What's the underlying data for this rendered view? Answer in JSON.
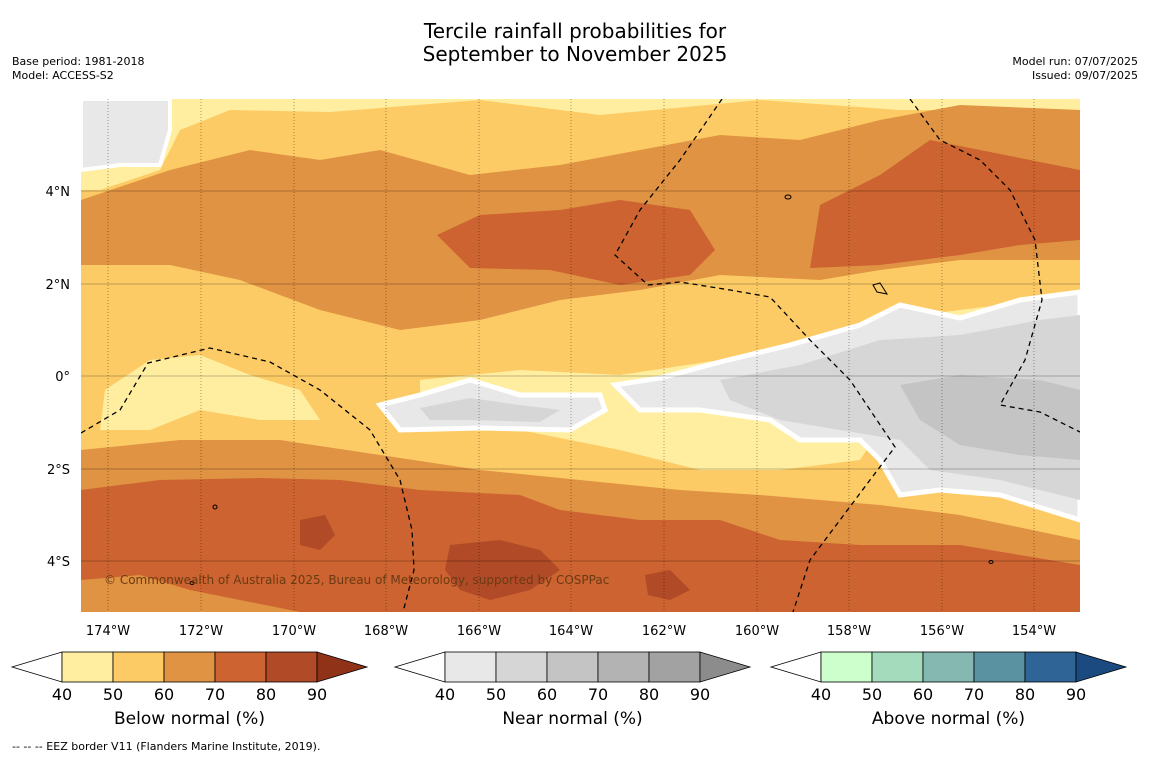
{
  "header": {
    "title_line1": "Tercile rainfall probabilities for",
    "title_line2": "September to November 2025",
    "base_period": "Base period: 1981-2018",
    "model": "Model: ACCESS-S2",
    "model_run": "Model run: 07/07/2025",
    "issued": "Issued: 09/07/2025"
  },
  "map": {
    "copyright": "© Commonwealth of Australia 2025, Bureau of Meteorology, supported by COSPPac",
    "lon_labels": [
      "174°W",
      "172°W",
      "170°W",
      "168°W",
      "166°W",
      "164°W",
      "162°W",
      "160°W",
      "158°W",
      "156°W",
      "154°W"
    ],
    "lat_labels": [
      "4°N",
      "2°N",
      "0°",
      "2°S",
      "4°S"
    ]
  },
  "colorbars": [
    {
      "caption": "Below normal (%)",
      "ticks": [
        "40",
        "50",
        "60",
        "70",
        "80",
        "90"
      ],
      "colors": [
        "#ffffff",
        "#ffeea0",
        "#fdcb65",
        "#e09342",
        "#cc6330",
        "#b14a27",
        "#8f3218"
      ]
    },
    {
      "caption": "Near normal (%)",
      "ticks": [
        "40",
        "50",
        "60",
        "70",
        "80",
        "90"
      ],
      "colors": [
        "#ffffff",
        "#e8e8e8",
        "#d6d6d6",
        "#c4c4c4",
        "#b3b3b3",
        "#a2a2a2",
        "#8c8c8c"
      ]
    },
    {
      "caption": "Above normal (%)",
      "ticks": [
        "40",
        "50",
        "60",
        "70",
        "80",
        "90"
      ],
      "colors": [
        "#ffffff",
        "#ccffcc",
        "#a4dbbd",
        "#84b8b0",
        "#5b92a2",
        "#2f6596",
        "#1a4a80"
      ]
    }
  ],
  "footnote": "--  --  -- EEZ border V11 (Flanders Marine Institute, 2019)."
}
